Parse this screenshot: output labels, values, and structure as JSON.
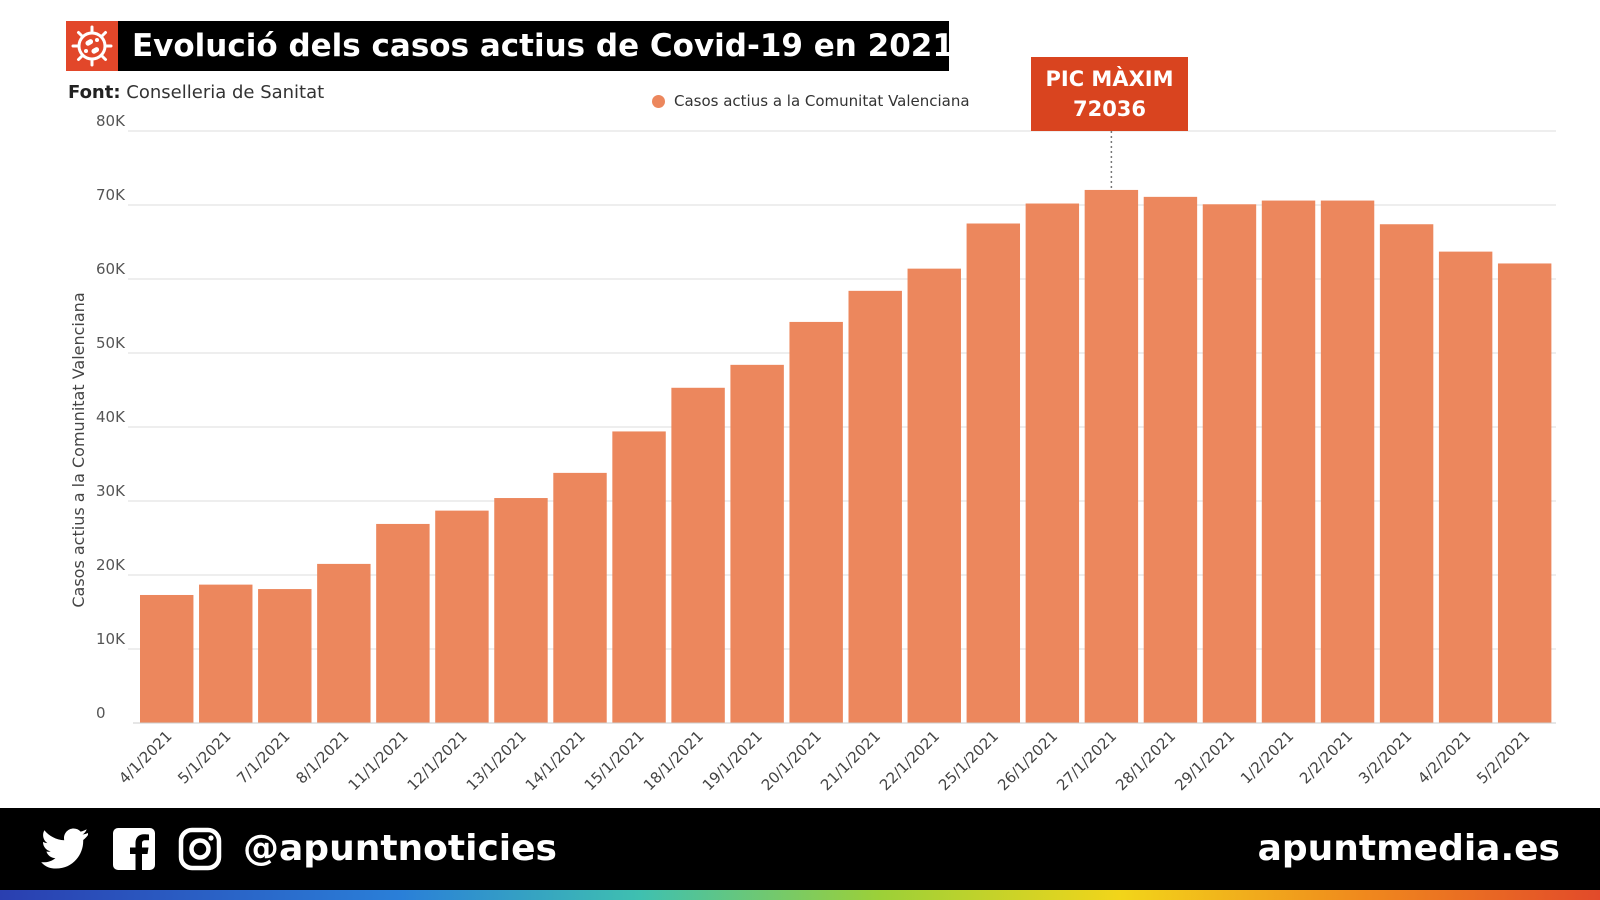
{
  "header": {
    "title": "Evolució dels casos actius de Covid-19 en 2021",
    "logo_icon": "virus-icon",
    "source_label": "Font:",
    "source_value": "Conselleria de Sanitat"
  },
  "peak": {
    "line1": "PIC MÀXIM",
    "line2": "72036"
  },
  "colors": {
    "bar": "#ec875d",
    "accent": "#d9441f",
    "grid": "#dddddd"
  },
  "chart_data": {
    "type": "bar",
    "title": "Evolució dels casos actius de Covid-19 en 2021",
    "xlabel": "",
    "ylabel": "Casos actius a la Comunitat Valenciana",
    "legend": [
      "Casos actius a la Comunitat Valenciana"
    ],
    "legend_position": "top-center",
    "grid": true,
    "ylim": [
      0,
      80000
    ],
    "yticks": [
      0,
      10000,
      20000,
      30000,
      40000,
      50000,
      60000,
      70000,
      80000
    ],
    "ytick_labels": [
      "0",
      "10K",
      "20K",
      "30K",
      "40K",
      "50K",
      "60K",
      "70K",
      "80K"
    ],
    "categories": [
      "4/1/2021",
      "5/1/2021",
      "7/1/2021",
      "8/1/2021",
      "11/1/2021",
      "12/1/2021",
      "13/1/2021",
      "14/1/2021",
      "15/1/2021",
      "18/1/2021",
      "19/1/2021",
      "20/1/2021",
      "21/1/2021",
      "22/1/2021",
      "25/1/2021",
      "26/1/2021",
      "27/1/2021",
      "28/1/2021",
      "29/1/2021",
      "1/2/2021",
      "2/2/2021",
      "3/2/2021",
      "4/2/2021",
      "5/2/2021"
    ],
    "values": [
      17300,
      18700,
      18100,
      21500,
      26900,
      28700,
      30400,
      33800,
      39400,
      45300,
      48400,
      54200,
      58400,
      61400,
      67500,
      70200,
      72036,
      71100,
      70100,
      70600,
      70600,
      67400,
      63700,
      62100
    ],
    "annotations": [
      {
        "category": "27/1/2021",
        "text": "PIC MÀXIM 72036"
      }
    ]
  },
  "footer": {
    "social_icons": [
      "twitter-icon",
      "facebook-icon",
      "instagram-icon"
    ],
    "handle": "@apuntnoticies",
    "site": "apuntmedia.es"
  }
}
